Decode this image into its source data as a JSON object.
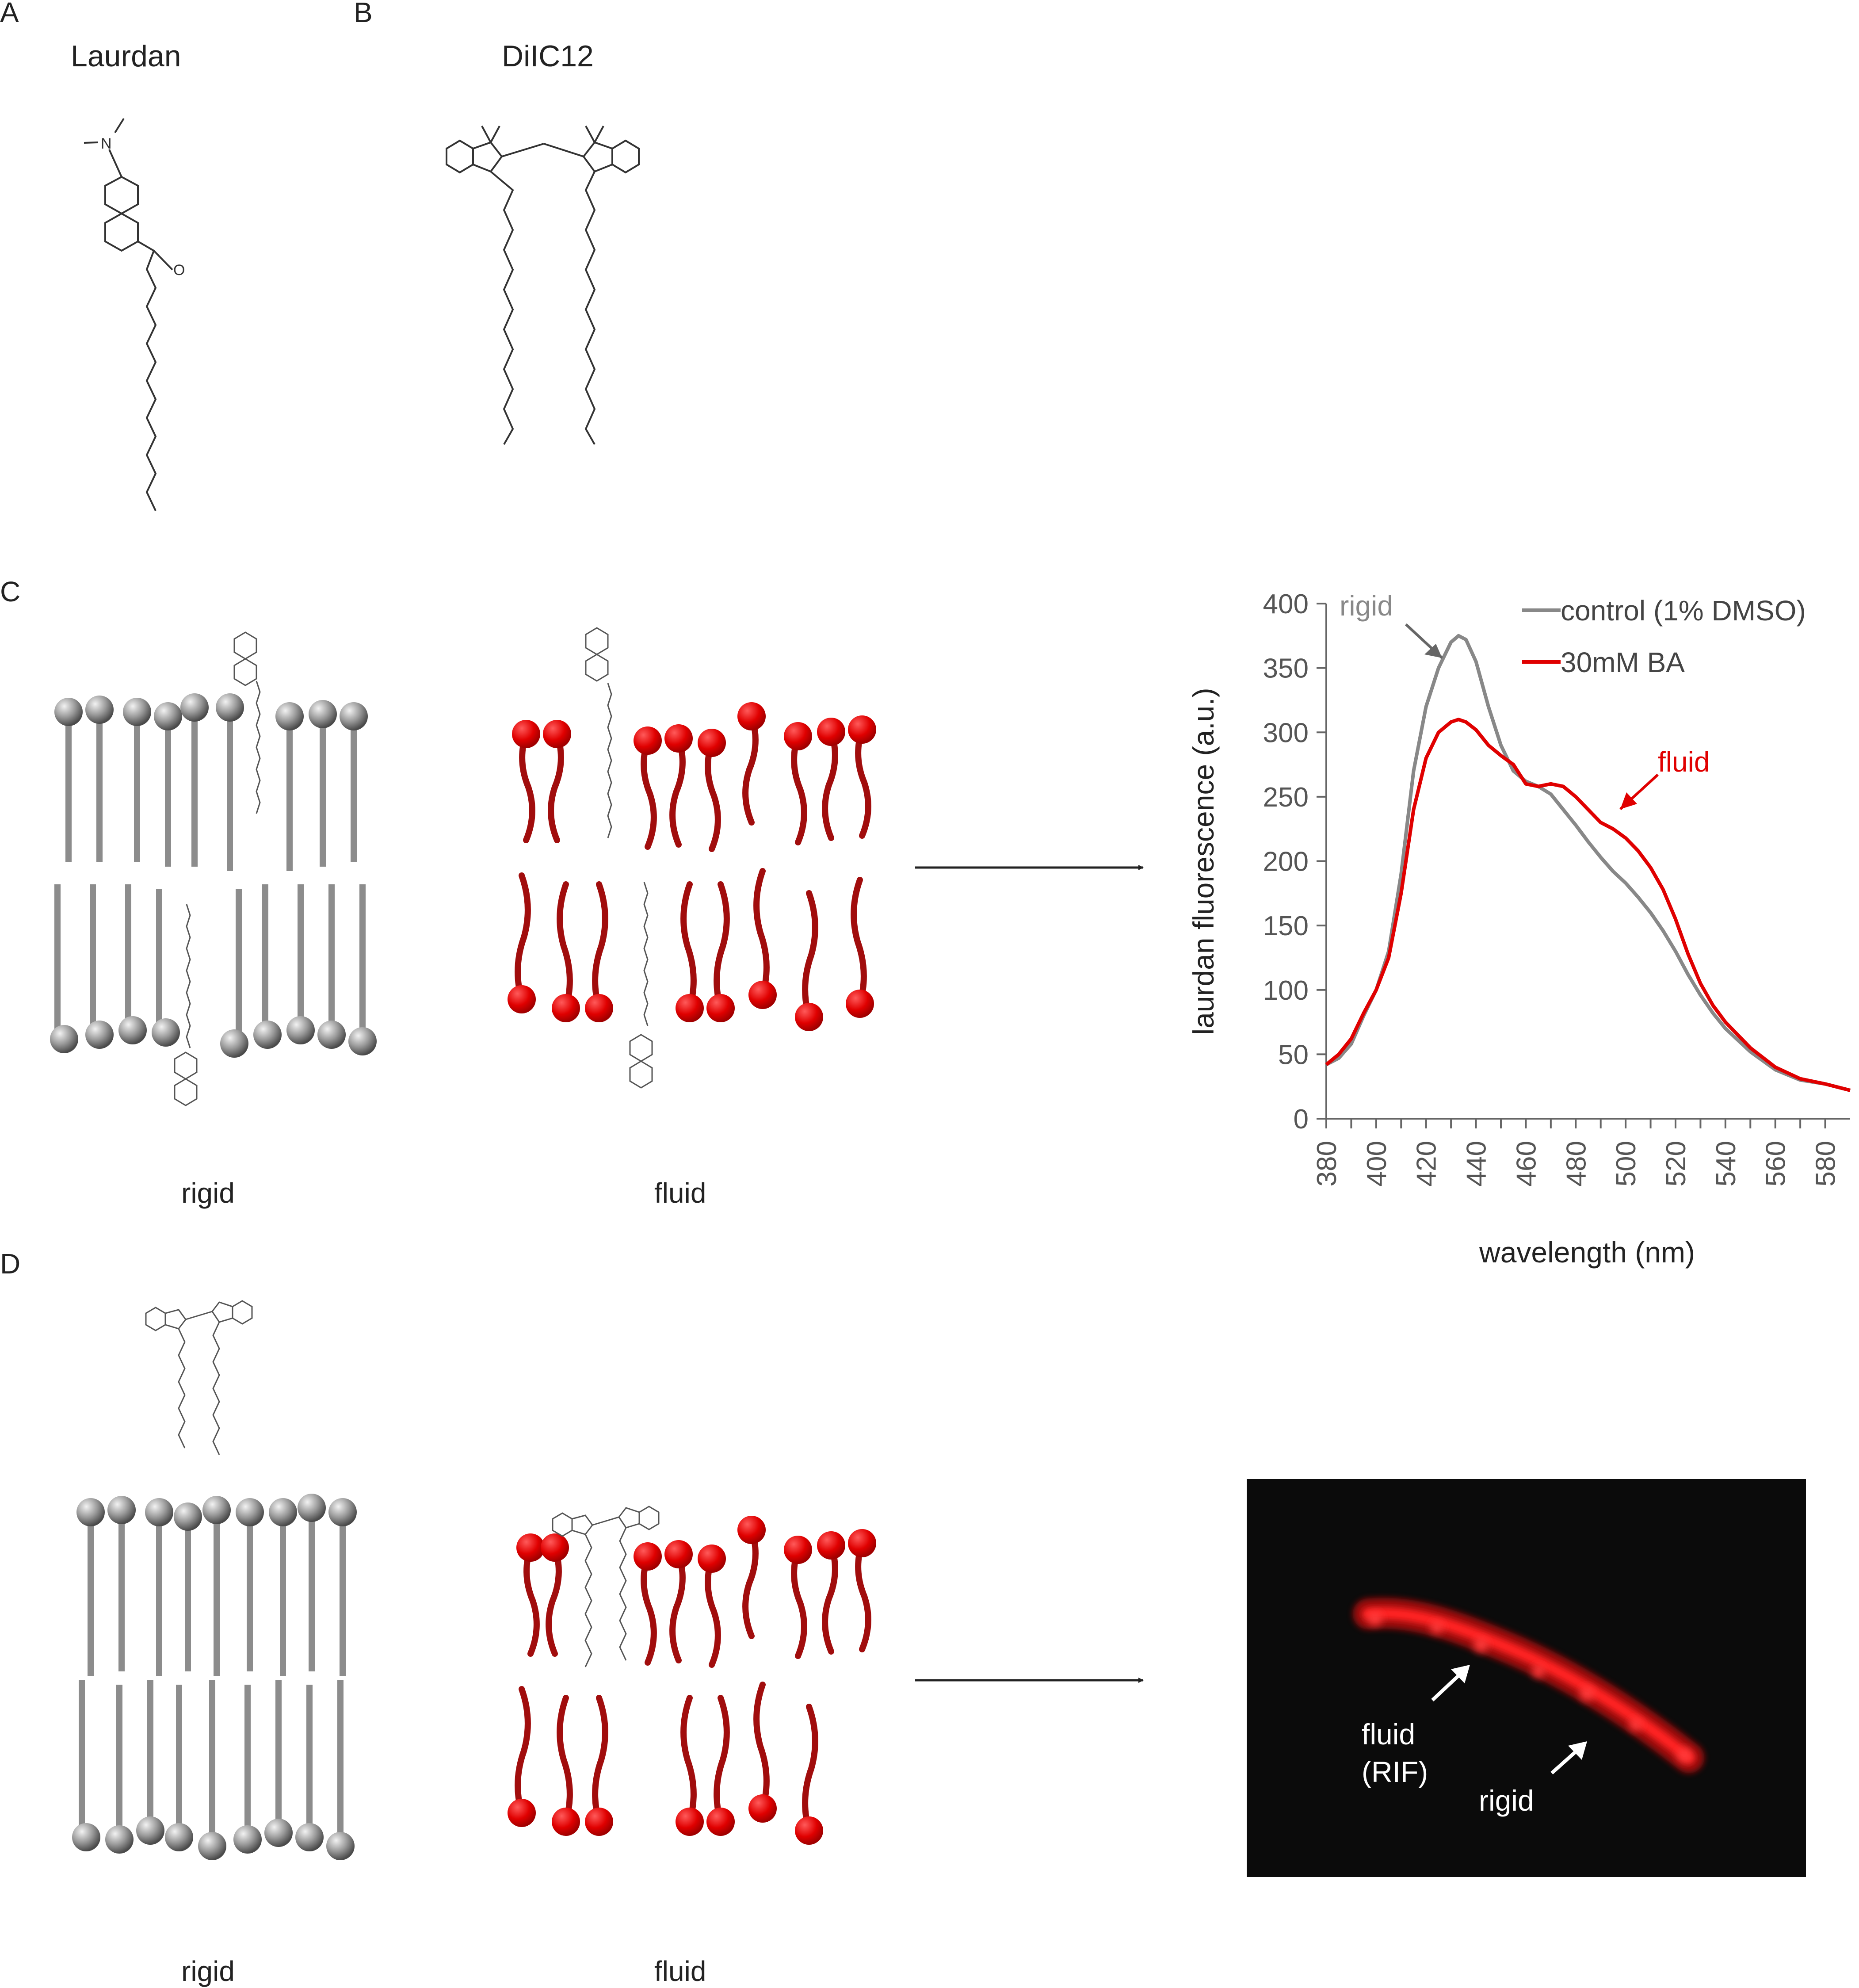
{
  "panels": {
    "a": {
      "letter": "A",
      "title": "Laurdan"
    },
    "b": {
      "letter": "B",
      "title": "DiIC12"
    },
    "c": {
      "letter": "C",
      "rigid_label": "rigid",
      "fluid_label": "fluid"
    },
    "d": {
      "letter": "D",
      "rigid_label": "rigid",
      "fluid_label": "fluid"
    }
  },
  "molecule_labels": {
    "nitrogen": "N",
    "oxygen": "O"
  },
  "colors": {
    "rigid_lipid": "#8c8c8c",
    "fluid_lipid": "#a10d0d",
    "fluid_head": "#e00000",
    "control_line": "#888888",
    "ba_line": "#e00000",
    "micrograph_bg": "#0b0b0b"
  },
  "chart_data": {
    "type": "line",
    "xlabel": "wavelength (nm)",
    "ylabel": "laurdan fluorescence (a.u.)",
    "xlim": [
      380,
      590
    ],
    "ylim": [
      0,
      400
    ],
    "xticks": [
      380,
      400,
      420,
      440,
      460,
      480,
      500,
      520,
      540,
      560,
      580
    ],
    "yticks": [
      0,
      50,
      100,
      150,
      200,
      250,
      300,
      350,
      400
    ],
    "legend": "top-right",
    "series": [
      {
        "name": "control (1% DMSO)",
        "color": "#888888",
        "x": [
          380,
          385,
          390,
          395,
          400,
          405,
          410,
          415,
          420,
          425,
          430,
          433,
          436,
          440,
          445,
          450,
          455,
          460,
          465,
          470,
          475,
          480,
          485,
          490,
          495,
          500,
          505,
          510,
          515,
          520,
          525,
          530,
          535,
          540,
          550,
          560,
          570,
          580,
          590
        ],
        "y": [
          42,
          47,
          58,
          80,
          100,
          130,
          190,
          270,
          320,
          350,
          370,
          375,
          372,
          355,
          320,
          290,
          270,
          262,
          258,
          252,
          240,
          228,
          215,
          203,
          192,
          183,
          172,
          160,
          146,
          130,
          112,
          96,
          82,
          70,
          52,
          38,
          30,
          27,
          22
        ]
      },
      {
        "name": "30mM BA",
        "color": "#e00000",
        "x": [
          380,
          385,
          390,
          395,
          400,
          405,
          410,
          415,
          420,
          425,
          430,
          433,
          436,
          440,
          445,
          450,
          455,
          460,
          465,
          470,
          475,
          480,
          485,
          490,
          495,
          500,
          505,
          510,
          515,
          520,
          525,
          530,
          535,
          540,
          550,
          560,
          570,
          580,
          590
        ],
        "y": [
          42,
          50,
          62,
          82,
          100,
          125,
          175,
          240,
          280,
          300,
          308,
          310,
          308,
          302,
          290,
          282,
          275,
          260,
          258,
          260,
          258,
          250,
          240,
          230,
          225,
          218,
          208,
          195,
          178,
          155,
          128,
          105,
          88,
          75,
          55,
          40,
          31,
          27,
          22
        ]
      }
    ],
    "annotations": [
      "rigid",
      "fluid"
    ]
  },
  "micrograph": {
    "label_fluid": "fluid",
    "label_rif": "(RIF)",
    "label_rigid": "rigid"
  }
}
